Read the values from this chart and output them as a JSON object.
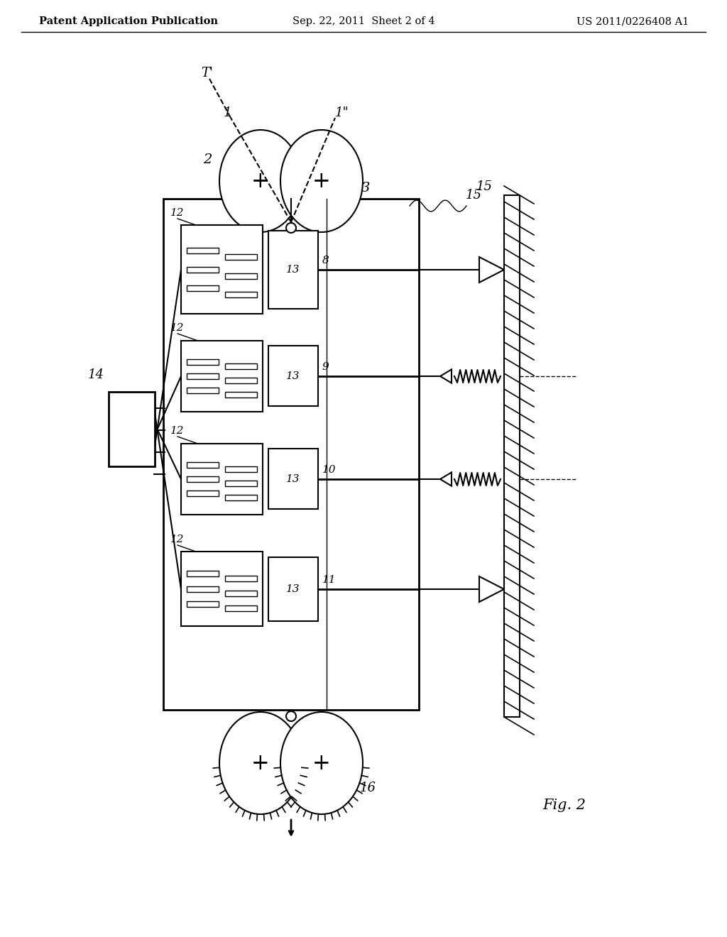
{
  "title_left": "Patent Application Publication",
  "title_center": "Sep. 22, 2011  Sheet 2 of 4",
  "title_right": "US 2011/0226408 A1",
  "fig_label": "Fig. 2",
  "bg_color": "#ffffff",
  "line_color": "#000000",
  "header_fontsize": 10.5,
  "fig_label_fontsize": 15
}
